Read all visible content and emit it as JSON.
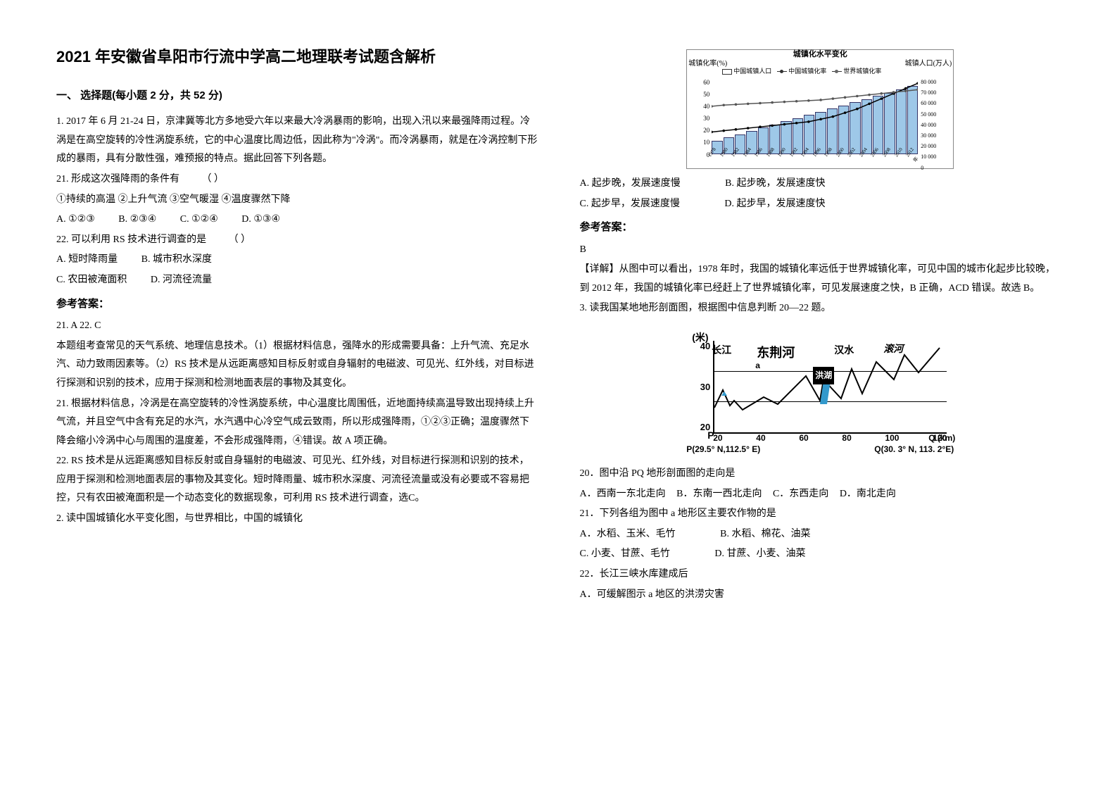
{
  "title": "2021 年安徽省阜阳市行流中学高二地理联考试题含解析",
  "section_title": "一、 选择题(每小题 2 分，共 52 分)",
  "q1": {
    "stem1": "1. 2017 年 6 月 21-24 日，京津冀等北方多地受六年以来最大冷涡暴雨的影响，出现入汛以来最强降雨过程。冷涡是在高空旋转的冷性涡旋系统，它的中心温度比周边低，因此称为\"冷涡\"。而冷涡暴雨，就是在冷涡控制下形成的暴雨，具有分散性强，难预报的特点。据此回答下列各题。",
    "q21_stem": "21. 形成这次强降雨的条件有　　  （      ）",
    "q21_items": "①持续的高温   ②上升气流   ③空气暖湿   ④温度骤然下降",
    "q21_A": "A. ①②③",
    "q21_B": "B. ②③④",
    "q21_C": "C. ①②④",
    "q21_D": "D. ①③④",
    "q22_stem": "22. 可以利用 RS 技术进行调查的是　　  （       ）",
    "q22_A": "A. 短时降雨量",
    "q22_B": "B. 城市积水深度",
    "q22_C": "C. 农田被淹面积",
    "q22_D": "D. 河流径流量",
    "answer_label": "参考答案：",
    "answer": "21. A        22. C",
    "explain1": "本题组考查常见的天气系统、地理信息技术。（1）根据材料信息，强降水的形成需要具备：上升气流、充足水汽、动力致雨因素等。（2）RS 技术是从远距离感知目标反射或自身辐射的电磁波、可见光、红外线，对目标进行探测和识别的技术，应用于探测和检测地面表层的事物及其变化。",
    "explain21": "21. 根据材料信息，冷涡是在高空旋转的冷性涡旋系统，中心温度比周围低，近地面持续高温导致出现持续上升气流，并且空气中含有充足的水汽，水汽遇中心冷空气成云致雨，所以形成强降雨，①②③正确；温度骤然下降会缩小冷涡中心与周围的温度差，不会形成强降雨，④错误。故 A 项正确。",
    "explain22": "22. RS 技术是从远距离感知目标反射或自身辐射的电磁波、可见光、红外线，对目标进行探测和识别的技术，应用于探测和检测地面表层的事物及其变化。短时降雨量、城市积水深度、河流径流量或没有必要或不容易把控，只有农田被淹面积是一个动态变化的数据现象，可利用 RS 技术进行调查，选C。"
  },
  "q2": {
    "stem": "2. 读中国城镇化水平变化图，与世界相比，中国的城镇化",
    "chart": {
      "title": "城镇化水平变化",
      "ylabel_left": "城镇化率(%)",
      "ylabel_right": "城镇人口(万人)",
      "legend": [
        "中国城镇人口",
        "中国城镇化率",
        "世界城镇化率"
      ],
      "yticks_left": [
        "60",
        "50",
        "40",
        "30",
        "20",
        "10",
        "0"
      ],
      "yticks_right": [
        "80 000",
        "70 000",
        "60 000",
        "50 000",
        "40 000",
        "30 000",
        "20 000",
        "10 000",
        "0"
      ],
      "xticks": [
        "1978",
        "1980",
        "1982",
        "1984",
        "1986",
        "1988",
        "1990",
        "1992",
        "1994",
        "1996",
        "1998",
        "2000",
        "2002",
        "2004",
        "2006",
        "2008",
        "2010",
        "2012年"
      ],
      "bars": [
        18,
        19,
        20,
        21,
        22,
        23,
        24,
        25,
        26,
        28,
        30,
        33,
        36,
        40,
        44,
        48,
        52,
        56
      ],
      "line_cn": [
        18,
        19,
        20,
        21,
        22,
        23,
        24,
        25,
        26,
        28,
        30,
        33,
        36,
        40,
        44,
        48,
        52,
        56
      ],
      "line_world": [
        38,
        39,
        39.5,
        40,
        40.5,
        41,
        41.5,
        42,
        42.5,
        43,
        44,
        45,
        46,
        47,
        48,
        49,
        50,
        51
      ]
    },
    "optA": "A. 起步晚，发展速度慢",
    "optB": "B. 起步晚，发展速度快",
    "optC": "C. 起步早，发展速度慢",
    "optD": "D. 起步早，发展速度快",
    "answer_label": "参考答案：",
    "answer": "B",
    "explain": "【详解】从图中可以看出，1978 年时，我国的城镇化率远低于世界城镇化率，可见中国的城市化起步比较晚，到 2012 年，我国的城镇化率已经赶上了世界城镇化率，可见发展速度之快，B 正确，ACD 错误。故选 B。"
  },
  "q3": {
    "stem": "3. 读我国某地地形剖面图，根据图中信息判断 20—22 题。",
    "chart": {
      "ylabel": "(米)",
      "yticks": [
        "40",
        "30",
        "20"
      ],
      "xticks": [
        "20",
        "40",
        "60",
        "80",
        "100",
        "120"
      ],
      "xunit": "Q (km)",
      "labels": {
        "changjiang": "长江",
        "dongjing": "东荆河",
        "hanshui": "汉水",
        "gunhe": "滚河",
        "honghu": "洪湖",
        "a": "a"
      },
      "p_left": "P(29.5° N,112.5° E)",
      "p_right": "Q(30. 3° N, 113. 2°E)",
      "p_marker": "P"
    },
    "q20_stem": "20．图中沿 PQ 地形剖面图的走向是",
    "q20_A": "A．西南一东北走向",
    "q20_B": "B．东南一西北走向",
    "q20_C": "C．东西走向",
    "q20_D": "D．南北走向",
    "q21_stem": "21．下列各组为图中 a 地形区主要农作物的是",
    "q21_A": "A．水稻、玉米、毛竹",
    "q21_B": "B. 水稻、棉花、油菜",
    "q21_C": "C. 小麦、甘蔗、毛竹",
    "q21_D": "D. 甘蔗、小麦、油菜",
    "q22_stem": "22．长江三峡水库建成后",
    "q22_A": "A．可缓解图示 a 地区的洪涝灾害"
  }
}
